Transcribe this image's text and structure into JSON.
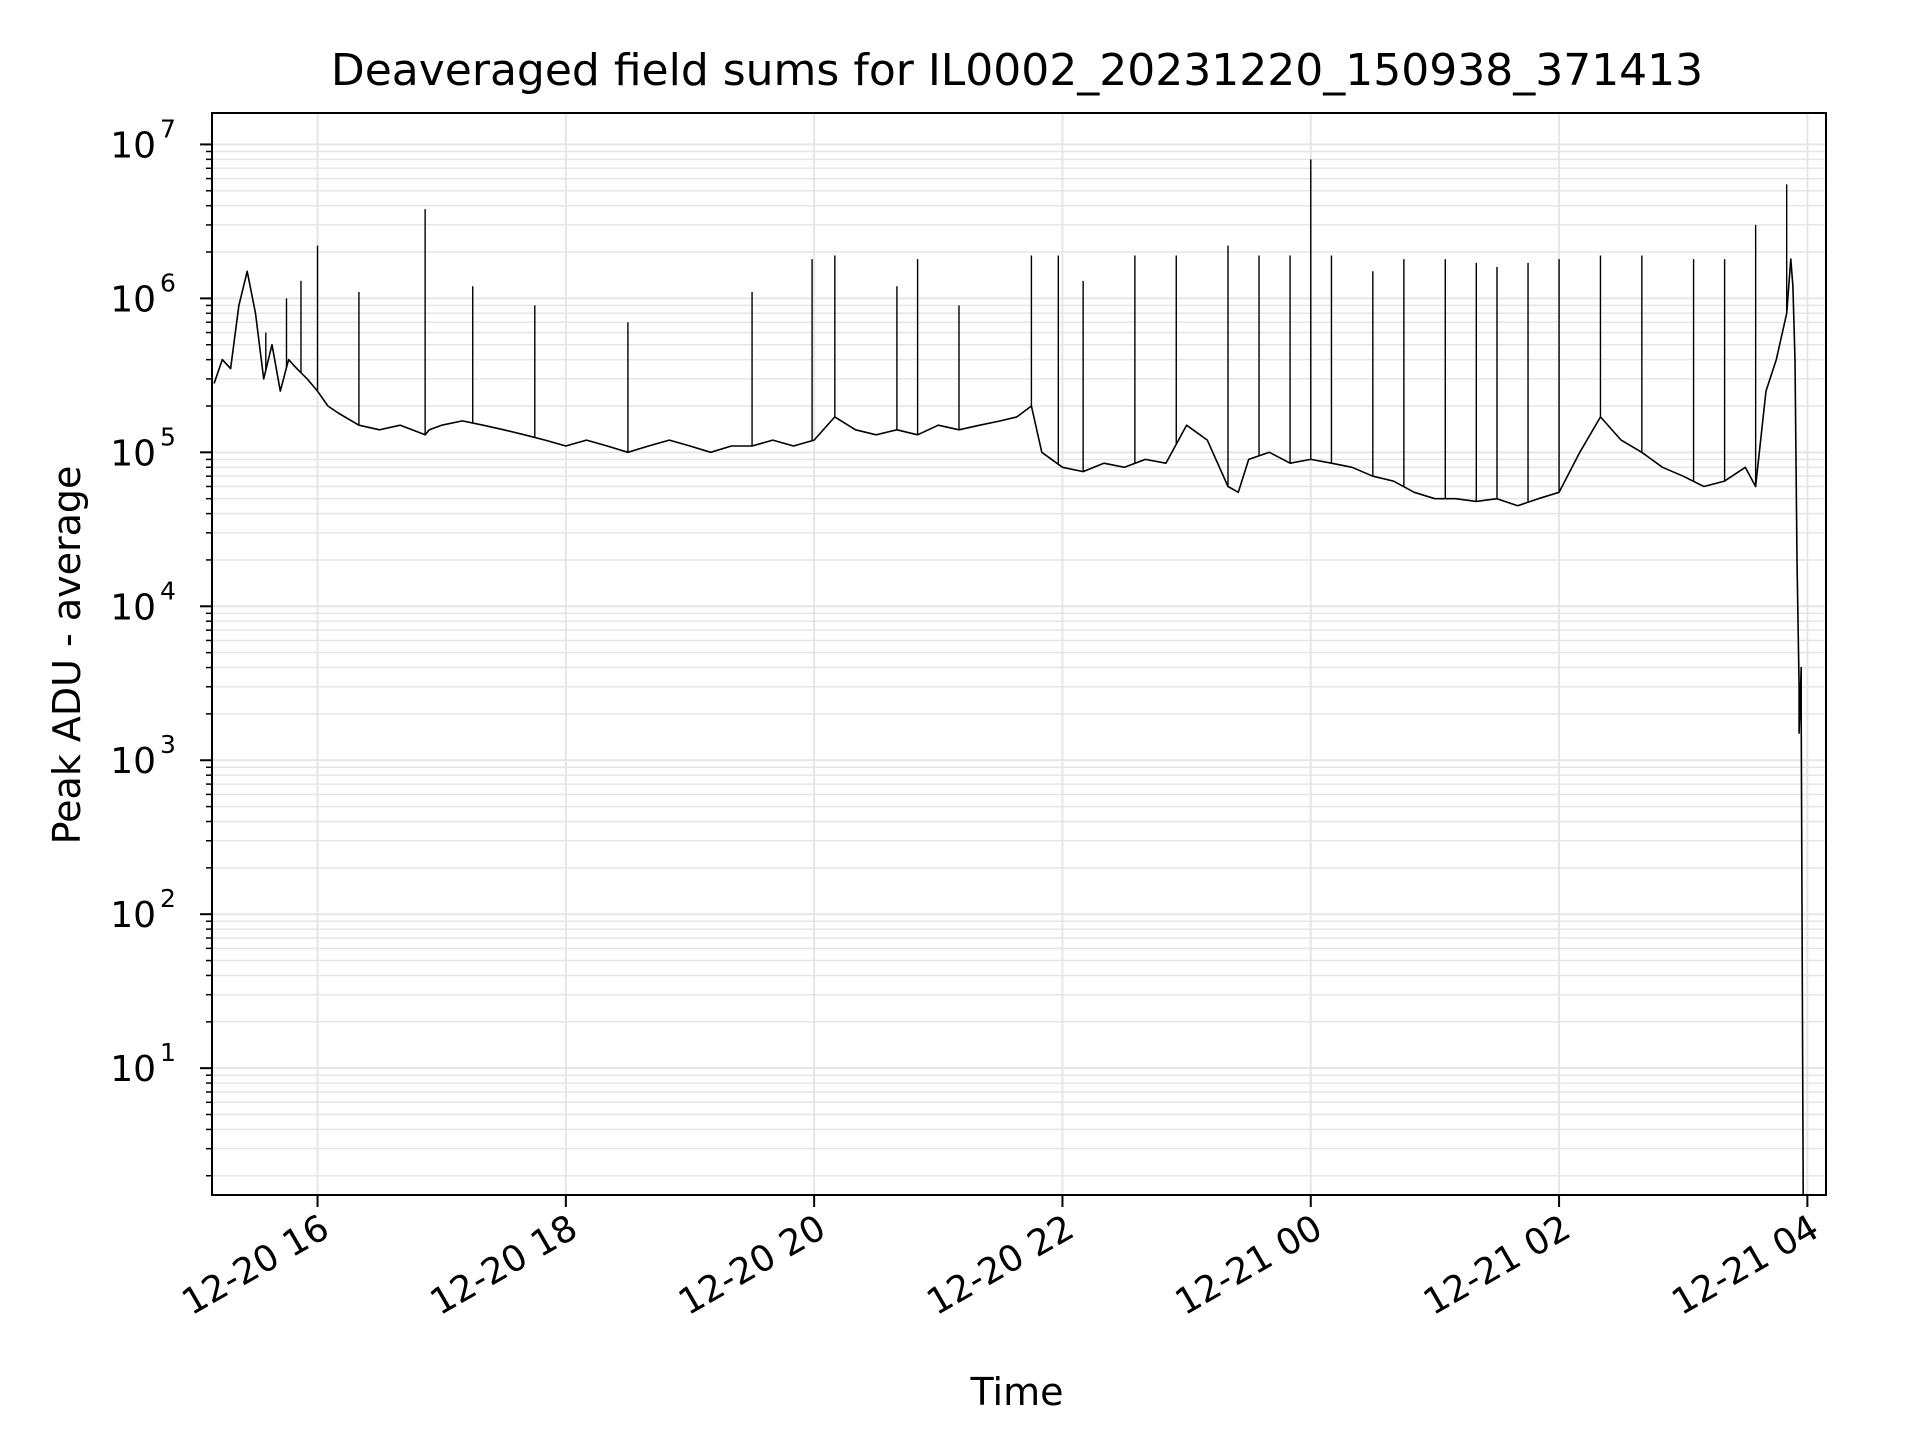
{
  "chart_data": {
    "type": "line",
    "title": "Deaveraged field sums for IL0002_20231220_150938_371413",
    "xlabel": "Time",
    "ylabel": "Peak ADU - average",
    "yscale": "log",
    "grid": true,
    "line_color": "#000000",
    "grid_color": "#e6e6e6",
    "xlim": [
      "2023-12-20 15:09",
      "2023-12-21 04:09"
    ],
    "ylim": [
      1.5,
      16000000
    ],
    "x_ticks": [
      {
        "label": "12-20 16",
        "value": "2023-12-20 16:00"
      },
      {
        "label": "12-20 18",
        "value": "2023-12-20 18:00"
      },
      {
        "label": "12-20 20",
        "value": "2023-12-20 20:00"
      },
      {
        "label": "12-20 22",
        "value": "2023-12-20 22:00"
      },
      {
        "label": "12-21 00",
        "value": "2023-12-21 00:00"
      },
      {
        "label": "12-21 02",
        "value": "2023-12-21 02:00"
      },
      {
        "label": "12-21 04",
        "value": "2023-12-21 04:00"
      }
    ],
    "y_ticks": [
      {
        "base": "10",
        "exp": "1",
        "value": 10
      },
      {
        "base": "10",
        "exp": "2",
        "value": 100
      },
      {
        "base": "10",
        "exp": "3",
        "value": 1000
      },
      {
        "base": "10",
        "exp": "4",
        "value": 10000
      },
      {
        "base": "10",
        "exp": "5",
        "value": 100000
      },
      {
        "base": "10",
        "exp": "6",
        "value": 1000000
      },
      {
        "base": "10",
        "exp": "7",
        "value": 10000000
      }
    ],
    "series": [
      {
        "x": [
          "2023-12-20 15:10",
          "2023-12-20 15:14",
          "2023-12-20 15:18",
          "2023-12-20 15:22",
          "2023-12-20 15:26",
          "2023-12-20 15:30",
          "2023-12-20 15:34",
          "2023-12-20 15:38",
          "2023-12-20 15:42",
          "2023-12-20 15:46",
          "2023-12-20 15:50",
          "2023-12-20 15:55",
          "2023-12-20 16:00",
          "2023-12-20 16:05",
          "2023-12-20 16:10",
          "2023-12-20 16:20",
          "2023-12-20 16:30",
          "2023-12-20 16:40",
          "2023-12-20 16:52",
          "2023-12-20 16:54",
          "2023-12-20 17:00",
          "2023-12-20 17:10",
          "2023-12-20 17:20",
          "2023-12-20 17:30",
          "2023-12-20 17:40",
          "2023-12-20 17:50",
          "2023-12-20 18:00",
          "2023-12-20 18:10",
          "2023-12-20 18:20",
          "2023-12-20 18:30",
          "2023-12-20 18:40",
          "2023-12-20 18:50",
          "2023-12-20 19:00",
          "2023-12-20 19:10",
          "2023-12-20 19:20",
          "2023-12-20 19:30",
          "2023-12-20 19:40",
          "2023-12-20 19:50",
          "2023-12-20 20:00",
          "2023-12-20 20:10",
          "2023-12-20 20:20",
          "2023-12-20 20:30",
          "2023-12-20 20:40",
          "2023-12-20 20:50",
          "2023-12-20 21:00",
          "2023-12-20 21:10",
          "2023-12-20 21:20",
          "2023-12-20 21:30",
          "2023-12-20 21:38",
          "2023-12-20 21:45",
          "2023-12-20 21:50",
          "2023-12-20 22:00",
          "2023-12-20 22:10",
          "2023-12-20 22:20",
          "2023-12-20 22:30",
          "2023-12-20 22:40",
          "2023-12-20 22:50",
          "2023-12-20 23:00",
          "2023-12-20 23:10",
          "2023-12-20 23:20",
          "2023-12-20 23:25",
          "2023-12-20 23:30",
          "2023-12-20 23:40",
          "2023-12-20 23:50",
          "2023-12-21 00:00",
          "2023-12-21 00:10",
          "2023-12-21 00:20",
          "2023-12-21 00:30",
          "2023-12-21 00:40",
          "2023-12-21 00:50",
          "2023-12-21 01:00",
          "2023-12-21 01:10",
          "2023-12-21 01:20",
          "2023-12-21 01:30",
          "2023-12-21 01:40",
          "2023-12-21 01:50",
          "2023-12-21 02:00",
          "2023-12-21 02:10",
          "2023-12-21 02:20",
          "2023-12-21 02:30",
          "2023-12-21 02:40",
          "2023-12-21 02:50",
          "2023-12-21 03:00",
          "2023-12-21 03:10",
          "2023-12-21 03:20",
          "2023-12-21 03:30",
          "2023-12-21 03:35",
          "2023-12-21 03:40",
          "2023-12-21 03:45",
          "2023-12-21 03:50",
          "2023-12-21 03:52",
          "2023-12-21 03:53",
          "2023-12-21 03:54",
          "2023-12-21 03:55",
          "2023-12-21 03:56",
          "2023-12-21 03:56",
          "2023-12-21 03:57",
          "2023-12-21 03:57",
          "2023-12-21 03:58"
        ],
        "y": [
          280000,
          400000,
          350000,
          900000,
          1500000,
          800000,
          300000,
          500000,
          250000,
          400000,
          350000,
          300000,
          250000,
          200000,
          180000,
          150000,
          140000,
          150000,
          130000,
          140000,
          150000,
          160000,
          150000,
          140000,
          130000,
          120000,
          110000,
          120000,
          110000,
          100000,
          110000,
          120000,
          110000,
          100000,
          110000,
          110000,
          120000,
          110000,
          120000,
          170000,
          140000,
          130000,
          140000,
          130000,
          150000,
          140000,
          150000,
          160000,
          170000,
          200000,
          100000,
          80000,
          75000,
          85000,
          80000,
          90000,
          85000,
          150000,
          120000,
          60000,
          55000,
          90000,
          100000,
          85000,
          90000,
          85000,
          80000,
          70000,
          65000,
          55000,
          50000,
          50000,
          48000,
          50000,
          45000,
          50000,
          55000,
          100000,
          170000,
          120000,
          100000,
          80000,
          70000,
          60000,
          65000,
          80000,
          60000,
          250000,
          400000,
          800000,
          1800000,
          1200000,
          400000,
          20000,
          3000,
          1500,
          4000,
          2000,
          1.5
        ]
      }
    ],
    "spikes": [
      {
        "x": "2023-12-20 15:35",
        "y": 600000
      },
      {
        "x": "2023-12-20 15:45",
        "y": 1000000
      },
      {
        "x": "2023-12-20 15:52",
        "y": 1300000
      },
      {
        "x": "2023-12-20 16:00",
        "y": 2200000
      },
      {
        "x": "2023-12-20 16:20",
        "y": 1100000
      },
      {
        "x": "2023-12-20 16:52",
        "y": 3800000
      },
      {
        "x": "2023-12-20 17:15",
        "y": 1200000
      },
      {
        "x": "2023-12-20 17:45",
        "y": 900000
      },
      {
        "x": "2023-12-20 18:30",
        "y": 700000
      },
      {
        "x": "2023-12-20 19:30",
        "y": 1100000
      },
      {
        "x": "2023-12-20 19:59",
        "y": 1800000
      },
      {
        "x": "2023-12-20 20:10",
        "y": 1900000
      },
      {
        "x": "2023-12-20 20:40",
        "y": 1200000
      },
      {
        "x": "2023-12-20 20:50",
        "y": 1800000
      },
      {
        "x": "2023-12-20 21:10",
        "y": 900000
      },
      {
        "x": "2023-12-20 21:45",
        "y": 1900000
      },
      {
        "x": "2023-12-20 21:58",
        "y": 1900000
      },
      {
        "x": "2023-12-20 22:10",
        "y": 1300000
      },
      {
        "x": "2023-12-20 22:35",
        "y": 1900000
      },
      {
        "x": "2023-12-20 22:55",
        "y": 1900000
      },
      {
        "x": "2023-12-20 23:20",
        "y": 2200000
      },
      {
        "x": "2023-12-20 23:35",
        "y": 1900000
      },
      {
        "x": "2023-12-20 23:50",
        "y": 1900000
      },
      {
        "x": "2023-12-21 00:00",
        "y": 8000000
      },
      {
        "x": "2023-12-21 00:10",
        "y": 1900000
      },
      {
        "x": "2023-12-21 00:30",
        "y": 1500000
      },
      {
        "x": "2023-12-21 00:45",
        "y": 1800000
      },
      {
        "x": "2023-12-21 01:05",
        "y": 1800000
      },
      {
        "x": "2023-12-21 01:20",
        "y": 1700000
      },
      {
        "x": "2023-12-21 01:30",
        "y": 1600000
      },
      {
        "x": "2023-12-21 01:45",
        "y": 1700000
      },
      {
        "x": "2023-12-21 02:00",
        "y": 1800000
      },
      {
        "x": "2023-12-21 02:20",
        "y": 1900000
      },
      {
        "x": "2023-12-21 02:40",
        "y": 1900000
      },
      {
        "x": "2023-12-21 03:05",
        "y": 1800000
      },
      {
        "x": "2023-12-21 03:20",
        "y": 1800000
      },
      {
        "x": "2023-12-21 03:35",
        "y": 3000000
      },
      {
        "x": "2023-12-21 03:50",
        "y": 5500000
      }
    ]
  }
}
